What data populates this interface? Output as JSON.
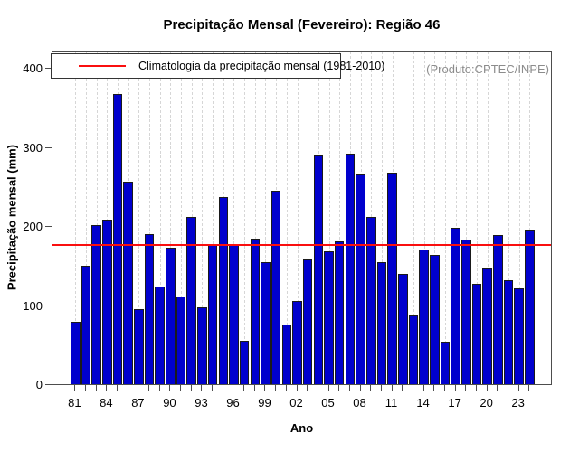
{
  "title": "Precipitação Mensal (Fevereiro): Região 46",
  "watermark": "(Produto:CPTEC/INPE)",
  "legend": {
    "label": "Climatologia da precipitação mensal (1981-2010)"
  },
  "chart_data": {
    "type": "bar",
    "title": "Precipitação Mensal (Fevereiro): Região 46",
    "xlabel": "Ano",
    "ylabel": "Precipitação mensal (mm)",
    "ylim": [
      0,
      400
    ],
    "yticks": [
      0,
      100,
      200,
      300,
      400
    ],
    "grid": "vertical-dashed",
    "legend_position": "top-left",
    "categories": [
      "81",
      "82",
      "83",
      "84",
      "85",
      "86",
      "87",
      "88",
      "89",
      "90",
      "91",
      "92",
      "93",
      "94",
      "95",
      "96",
      "97",
      "98",
      "99",
      "00",
      "01",
      "02",
      "03",
      "04",
      "05",
      "06",
      "07",
      "08",
      "09",
      "10",
      "11",
      "12",
      "13",
      "14",
      "15",
      "16",
      "17",
      "18",
      "19",
      "20",
      "21",
      "22",
      "23",
      "24"
    ],
    "values": [
      79,
      150,
      201,
      208,
      367,
      256,
      95,
      190,
      123,
      173,
      111,
      211,
      97,
      177,
      237,
      177,
      55,
      184,
      154,
      245,
      76,
      105,
      158,
      289,
      168,
      181,
      292,
      265,
      211,
      154,
      267,
      140,
      87,
      170,
      163,
      54,
      198,
      183,
      127,
      146,
      189,
      131,
      121,
      195
    ],
    "x_tick_labels_shown": [
      "81",
      "84",
      "87",
      "90",
      "93",
      "96",
      "99",
      "02",
      "05",
      "08",
      "11",
      "14",
      "17",
      "20",
      "23"
    ],
    "climatology_value": 180,
    "bar_color": "#0000CD",
    "bar_border_color": "#1a1a1a",
    "line_color": "#FA0F0F",
    "grid_color": "#D6D6D6"
  }
}
